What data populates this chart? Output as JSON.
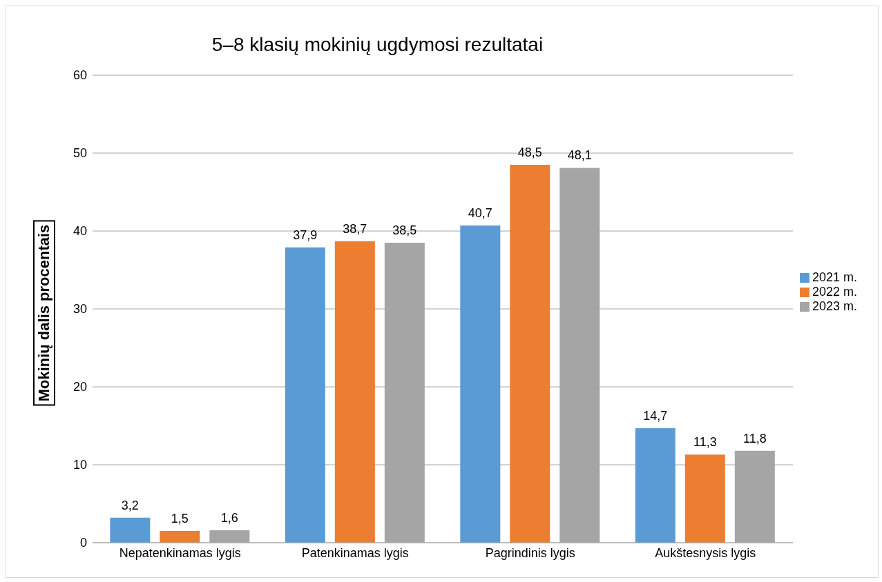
{
  "chart_data": {
    "type": "bar",
    "title": "5–8 klasių mokinių ugdymosi rezultatai",
    "ylabel": "Mokinių dalis procentais",
    "categories": [
      "Nepatenkinamas lygis",
      "Patenkinamas lygis",
      "Pagrindinis lygis",
      "Aukštesnysis lygis"
    ],
    "series": [
      {
        "name": "2021 m.",
        "color": "#5b9bd5",
        "values": [
          3.2,
          37.9,
          40.7,
          14.7
        ],
        "value_labels": [
          "3,2",
          "37,9",
          "40,7",
          "14,7"
        ]
      },
      {
        "name": "2022 m.",
        "color": "#ed7d31",
        "values": [
          1.5,
          38.7,
          48.5,
          11.3
        ],
        "value_labels": [
          "1,5",
          "38,7",
          "48,5",
          "11,3"
        ]
      },
      {
        "name": "2023 m.",
        "color": "#a5a5a5",
        "values": [
          1.6,
          38.5,
          48.1,
          11.8
        ],
        "value_labels": [
          "1,6",
          "38,5",
          "48,1",
          "11,8"
        ]
      }
    ],
    "ylim": [
      0,
      60
    ],
    "yticks": [
      0,
      10,
      20,
      30,
      40,
      50,
      60
    ],
    "grid": "y",
    "legend": "right"
  }
}
